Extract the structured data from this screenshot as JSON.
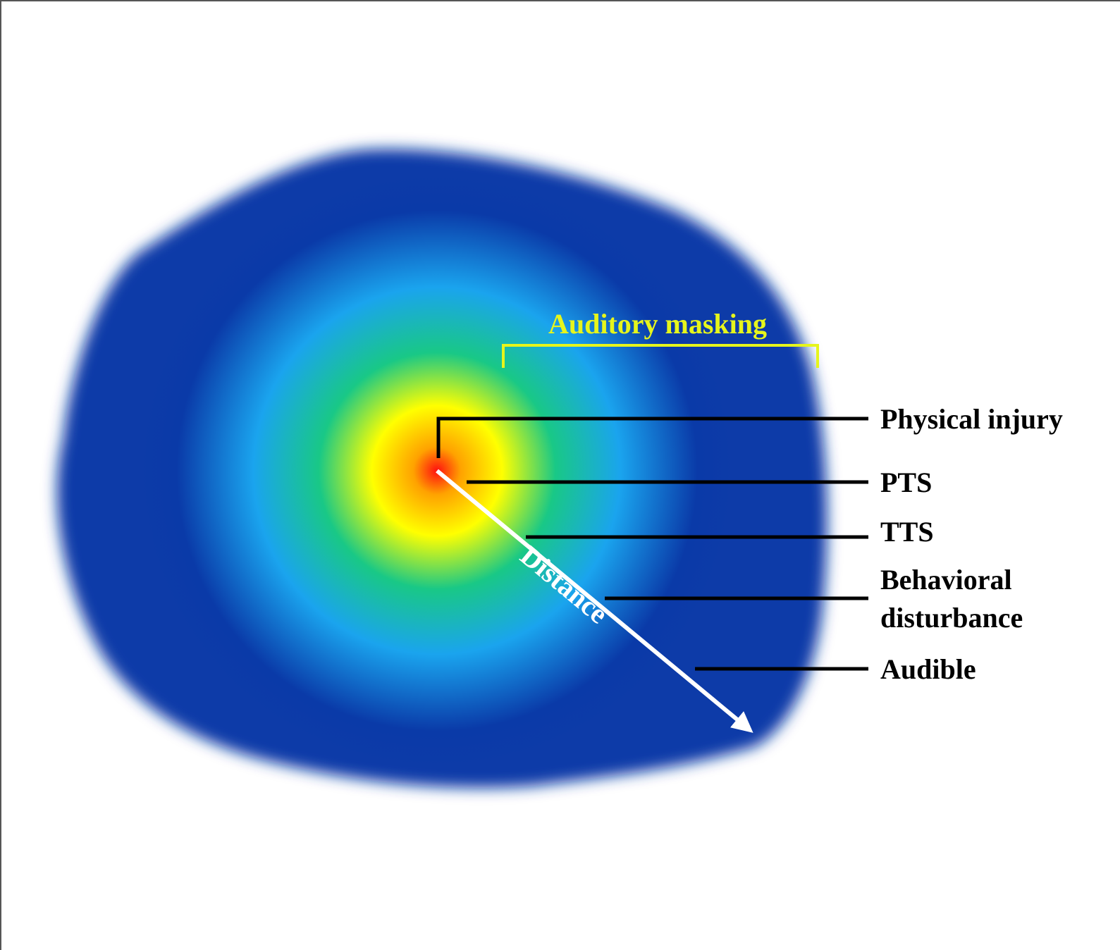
{
  "diagram": {
    "zone_labels": [
      {
        "id": "physical-injury",
        "lines": [
          "Physical injury"
        ]
      },
      {
        "id": "pts",
        "lines": [
          "PTS"
        ]
      },
      {
        "id": "tts",
        "lines": [
          "TTS"
        ]
      },
      {
        "id": "behavioral-disturbance",
        "lines": [
          "Behavioral",
          "disturbance"
        ]
      },
      {
        "id": "audible",
        "lines": [
          "Audible"
        ]
      }
    ],
    "masking_label": "Auditory masking",
    "distance_label": "Distance",
    "colors": {
      "outer_blue": "#0a3aa8",
      "light_blue": "#1aa4ee",
      "green": "#19c886",
      "yellow": "#ffff00",
      "orange": "#ffa200",
      "red": "#ff1010",
      "masking_yellow": "#e6f51c",
      "leader_black": "#000000",
      "arrow_white": "#ffffff"
    }
  }
}
